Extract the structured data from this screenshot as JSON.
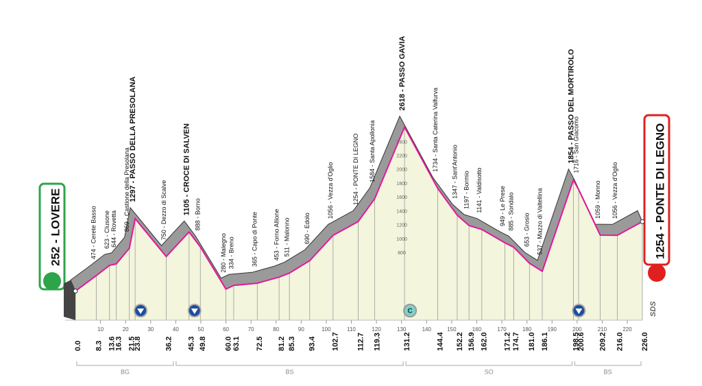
{
  "chart_data": {
    "type": "profile",
    "start_label": "252 - LOVERE",
    "finish_label": "1254 - PONTE DI LEGNO",
    "x": [
      0,
      8.3,
      13.6,
      16.3,
      21.5,
      23.8,
      36.2,
      45.3,
      49.8,
      60,
      63.1,
      72.5,
      81.2,
      85.3,
      93.4,
      102.7,
      112.7,
      119.3,
      131.2,
      144.4,
      152.2,
      156.9,
      162,
      171.2,
      174.7,
      181,
      186.1,
      198.5,
      200.6,
      209.2,
      216,
      226
    ],
    "x_labels": [
      "0.0",
      "8.3",
      "13.6",
      "16.3",
      "21.5",
      "23.8",
      "36.2",
      "45.3",
      "49.8",
      "60.0",
      "63.1",
      "72.5",
      "81.2",
      "85.3",
      "93.4",
      "102.7",
      "112.7",
      "119.3",
      "131.2",
      "144.4",
      "152.2",
      "156.9",
      "162.0",
      "171.2",
      "174.7",
      "181.0",
      "186.1",
      "198.5",
      "200.6",
      "209.2",
      "216.0",
      "226.0"
    ],
    "values": [
      252,
      474,
      623,
      644,
      869,
      1297,
      750,
      1105,
      888,
      280,
      334,
      365,
      453,
      511,
      690,
      1056,
      1254,
      1584,
      2618,
      1734,
      1347,
      1197,
      1141,
      949,
      885,
      653,
      537,
      1854,
      1716,
      1059,
      1056,
      1254
    ],
    "point_labels": [
      null,
      "474 - Cerete Basso",
      "623 - Clusone",
      "644 - Rovetta",
      "869 - Castione della Presolana",
      "1297 - PASSO DELLA PRESOLANA",
      "750 - Dezzo di Scalve",
      "1105 - CROCE DI SALVEN",
      "888 - Borno",
      "280 - Malegno",
      "334 - Breno",
      "365 - Capo di Ponte",
      "453 - Forno Allione",
      "511 - Malonno",
      "690 - Edolo",
      "1056 - Vezza d'Oglio",
      "1254 - PONTE DI LEGNO",
      "1584 - Santa Apollonia",
      "2618 - PASSO GAVIA",
      "1734 - Santa Caterina Valfurva",
      "1347 - Sant'Antonio",
      "1197 - Bormio",
      "1141 - Valdisotto",
      "949 - Le Prese",
      "885 - Sondalo",
      "653 - Grosio",
      "537 - Mazzo di Valtellina",
      "1854 - PASSO DEL MORTIROLO",
      "1716 - San Giacomo",
      "1059 - Monno",
      "1056 - Vezza d'Oglio",
      null
    ],
    "climb_points": [
      5,
      7,
      18,
      27
    ],
    "cima_coppi_index": 18,
    "cima_coppi_label": "C",
    "xlim": [
      0,
      226
    ],
    "xticks": [
      10,
      20,
      30,
      40,
      50,
      60,
      70,
      80,
      90,
      100,
      110,
      120,
      130,
      140,
      150,
      160,
      170,
      180,
      190,
      200,
      210,
      220
    ],
    "ylim": [
      0,
      2800
    ],
    "yticks": [
      800,
      1000,
      1200,
      1400,
      1600,
      1800,
      2000,
      2200,
      2400
    ],
    "regions": [
      {
        "name": "BG",
        "from": 0,
        "to": 39.6
      },
      {
        "name": "BS",
        "from": 39.6,
        "to": 131.2
      },
      {
        "name": "SO",
        "from": 131.2,
        "to": 198.5
      },
      {
        "name": "BS",
        "from": 198.5,
        "to": 226
      }
    ],
    "logo": "SDS",
    "line_color": "#e2189b",
    "fill_color": "#f3f5dc",
    "band_color": "#9a9a9a"
  }
}
